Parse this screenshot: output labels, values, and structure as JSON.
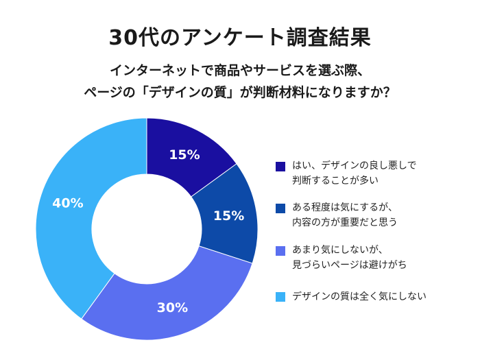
{
  "title": "30代のアンケート調査結果",
  "subtitle": {
    "line1": "インターネットで商品やサービスを選ぶ際、",
    "line2": "ページの「デザインの質」が判断材料になりますか？"
  },
  "chart_data": {
    "type": "pie",
    "donut": true,
    "categories": [
      "はい、デザインの良し悪しで判断することが多い",
      "ある程度は気にするが、内容の方が重要だと思う",
      "あまり気にしないが、見づらいページは避けがち",
      "デザインの質は全く気にしない"
    ],
    "values": [
      15,
      15,
      30,
      40
    ],
    "labels": [
      "15%",
      "15%",
      "30%",
      "40%"
    ],
    "colors": [
      "#1a0fa0",
      "#0d4aa8",
      "#5a6ff0",
      "#3ab2f8"
    ],
    "legend_position": "right",
    "legend": [
      {
        "line1": "はい、デザインの良し悪しで",
        "line2": "判断することが多い"
      },
      {
        "line1": "ある程度は気にするが、",
        "line2": "内容の方が重要だと思う"
      },
      {
        "line1": "あまり気にしないが、",
        "line2": "見づらいページは避けがち"
      },
      {
        "line1": "デザインの質は全く気にしない",
        "line2": ""
      }
    ]
  }
}
